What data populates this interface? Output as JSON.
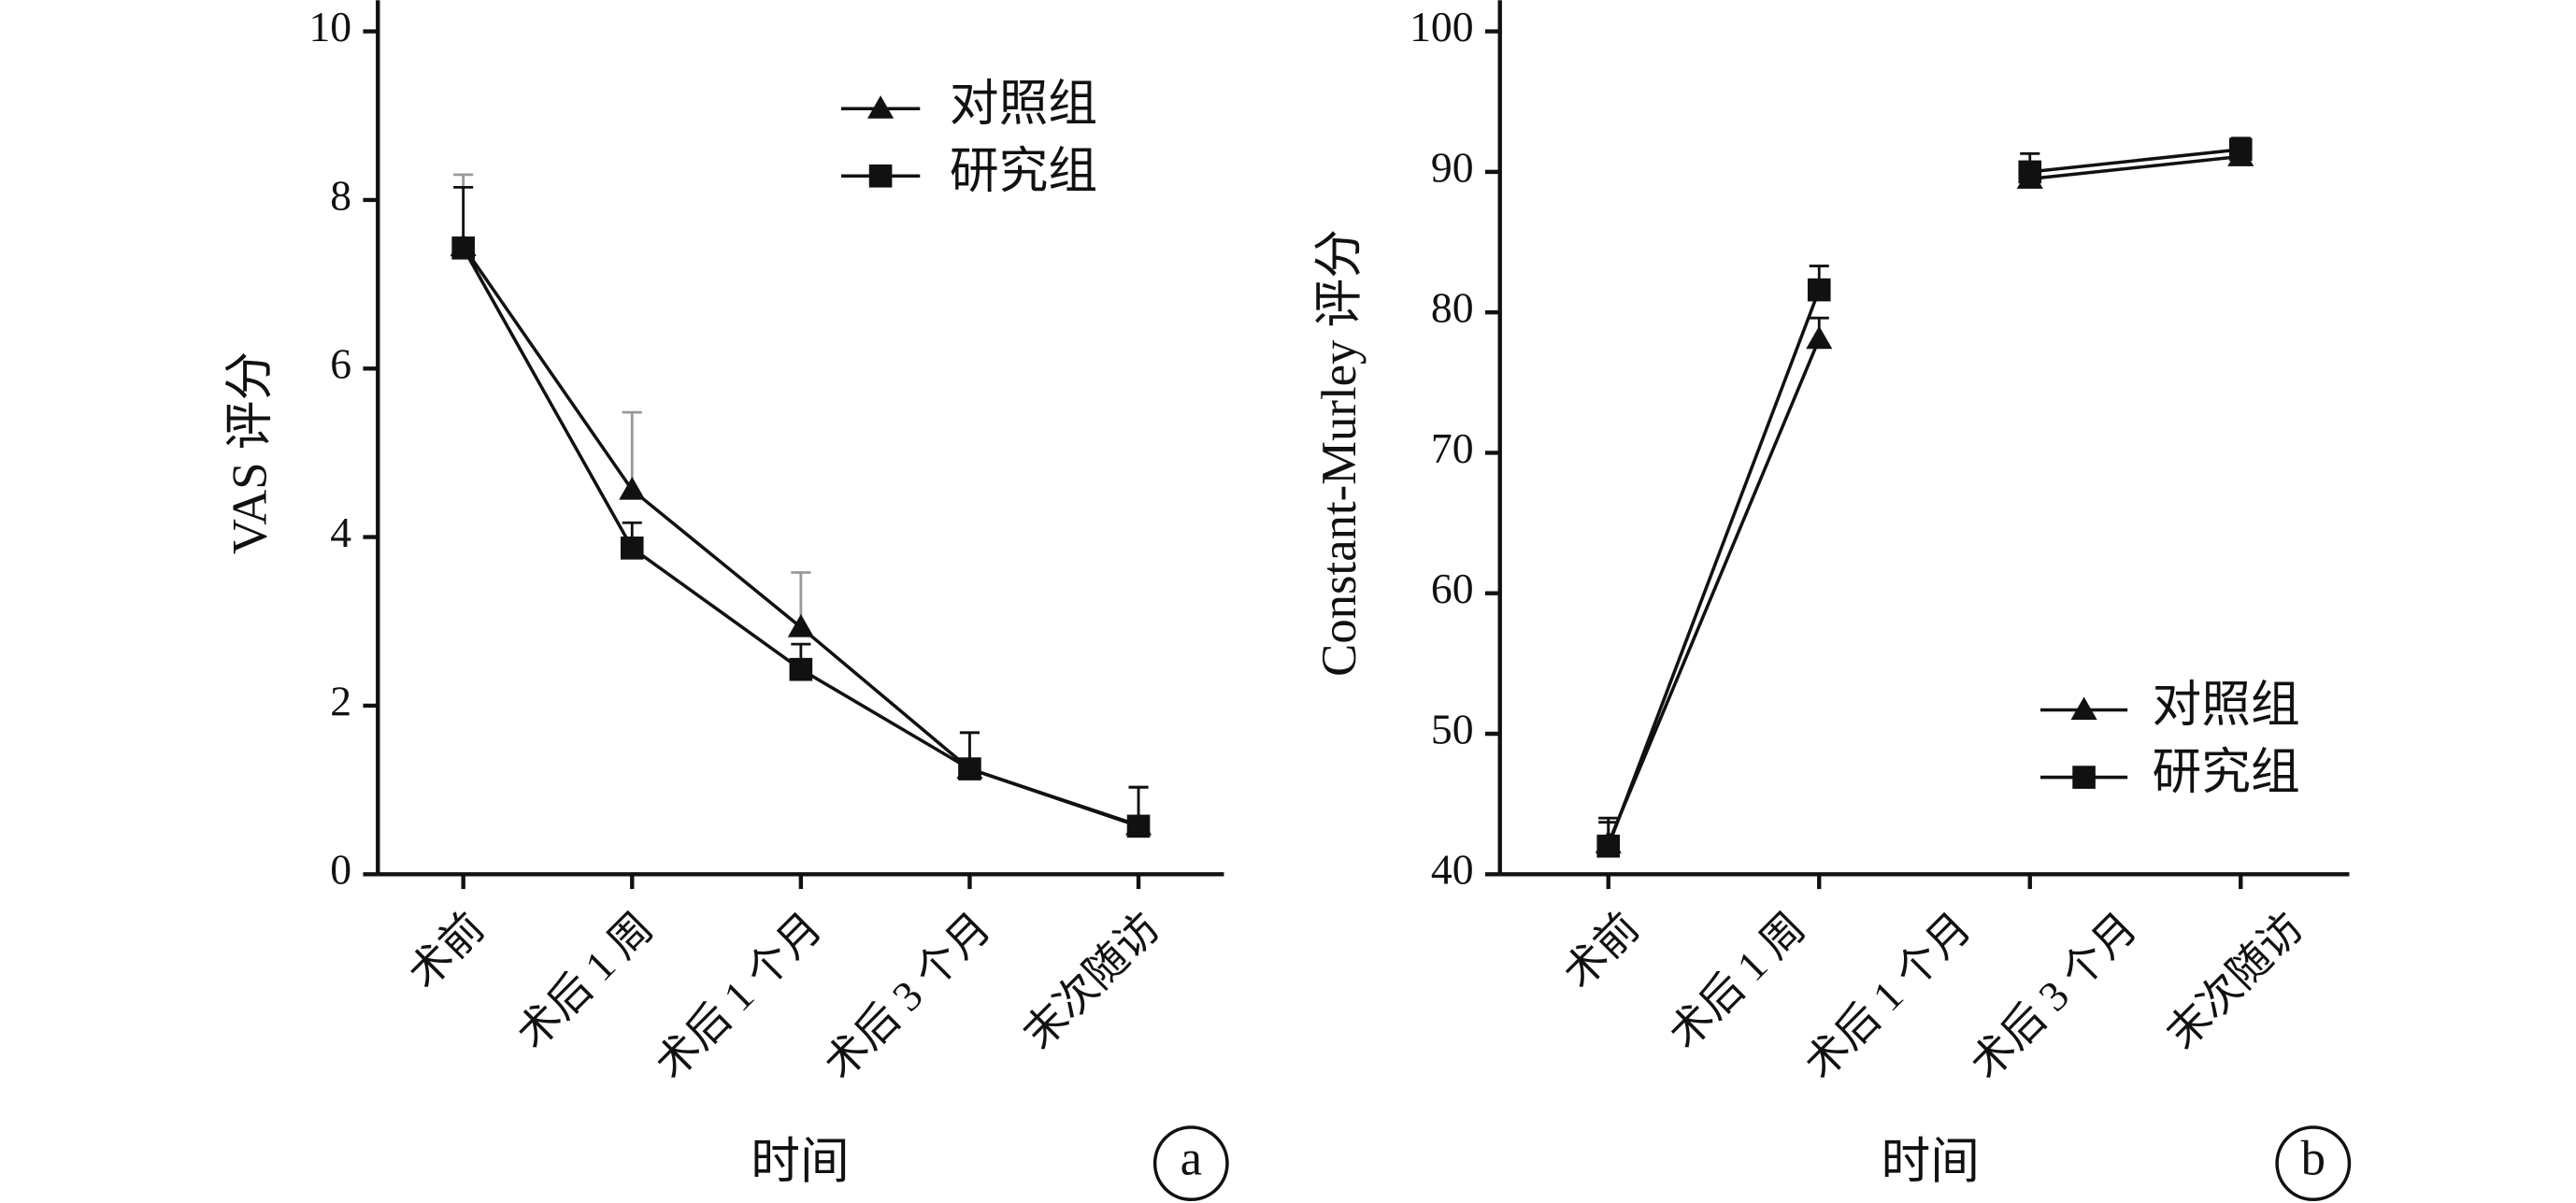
{
  "chart_data": [
    {
      "type": "line",
      "panel": "a",
      "xlabel": "时间",
      "ylabel": "VAS 评分",
      "categories": [
        "术前",
        "术后 1 周",
        "术后 1 个月",
        "术后 3 个月",
        "末次随访"
      ],
      "series": [
        {
          "name": "对照组",
          "color": "#111111",
          "marker": "triangle",
          "values": [
            7.45,
            4.56,
            2.93,
            1.25,
            0.58
          ],
          "errors": [
            0.85,
            0.92,
            0.65,
            0.43,
            0.46
          ],
          "error_color": "#999999"
        },
        {
          "name": "研究组",
          "color": "#111111",
          "marker": "square",
          "values": [
            7.43,
            3.87,
            2.43,
            1.25,
            0.57
          ],
          "errors": [
            0.72,
            0.3,
            0.3,
            0.43,
            0.46
          ],
          "error_color": "#111111"
        }
      ],
      "ylim": [
        0,
        10
      ],
      "yticks": [
        0,
        2,
        4,
        6,
        8,
        10
      ],
      "legend": "upper right"
    },
    {
      "type": "line",
      "panel": "b",
      "xlabel": "时间",
      "ylabel": "Constant-Murley 评分",
      "categories": [
        "术前",
        "术后 1 周",
        "术后 1 个月",
        "术后 3 个月",
        "末次随访"
      ],
      "series": [
        {
          "name": "对照组",
          "color": "#111111",
          "marker": "triangle",
          "values": [
            42.2,
            78.1,
            null,
            89.5,
            91.1
          ],
          "errors": [
            1.5,
            1.5,
            null,
            1.0,
            0.8
          ],
          "error_color": "#111111"
        },
        {
          "name": "研究组",
          "color": "#111111",
          "marker": "square",
          "values": [
            42.0,
            81.6,
            null,
            90.0,
            91.6
          ],
          "errors": [
            2.0,
            1.7,
            null,
            1.3,
            0.8
          ],
          "error_color": "#111111"
        }
      ],
      "ylim": [
        40,
        100
      ],
      "yticks": [
        40,
        50,
        60,
        70,
        80,
        90,
        100
      ],
      "legend": "lower right"
    }
  ]
}
